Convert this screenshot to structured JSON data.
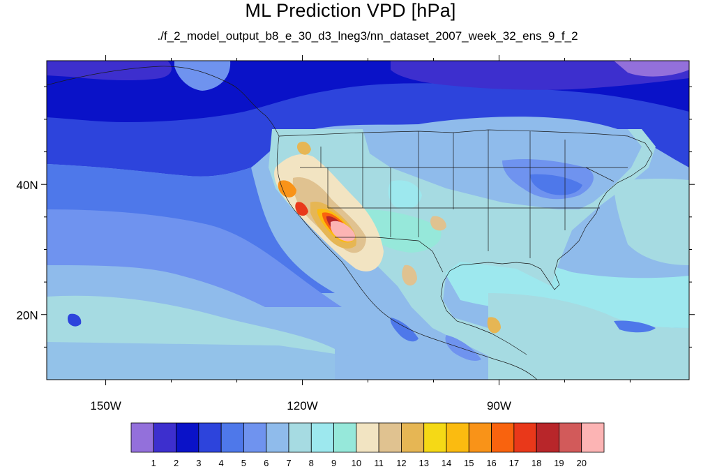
{
  "figure": {
    "title": "ML Prediction VPD [hPa]",
    "subtitle": "./f_2_model_output_b8_e_30_d3_lneg3/nn_dataset_2007_week_32_ens_9_f_2"
  },
  "map": {
    "lon_range": [
      -159,
      -61
    ],
    "lat_range": [
      10,
      59
    ],
    "x_ticks": [
      {
        "lon": -150,
        "label": "150W"
      },
      {
        "lon": -120,
        "label": "120W"
      },
      {
        "lon": -90,
        "label": "90W"
      }
    ],
    "y_ticks": [
      {
        "lat": 40,
        "label": "40N"
      },
      {
        "lat": 20,
        "label": "20N"
      }
    ]
  },
  "colorbar": {
    "labels": [
      "1",
      "2",
      "3",
      "4",
      "5",
      "6",
      "7",
      "8",
      "9",
      "10",
      "11",
      "12",
      "13",
      "14",
      "15",
      "16",
      "17",
      "18",
      "19",
      "20"
    ],
    "colors": [
      "#9370db",
      "#3d2fce",
      "#0a12c8",
      "#2d44dc",
      "#4e78ea",
      "#6f93ef",
      "#8fbbeb",
      "#a6dbe2",
      "#9de8ee",
      "#96e8da",
      "#f2e4c2",
      "#e0c290",
      "#e6b654",
      "#f5d916",
      "#fbbb10",
      "#f99318",
      "#f9630e",
      "#e9381a",
      "#b8262a",
      "#d25a5a",
      "#fcb4b4"
    ]
  }
}
